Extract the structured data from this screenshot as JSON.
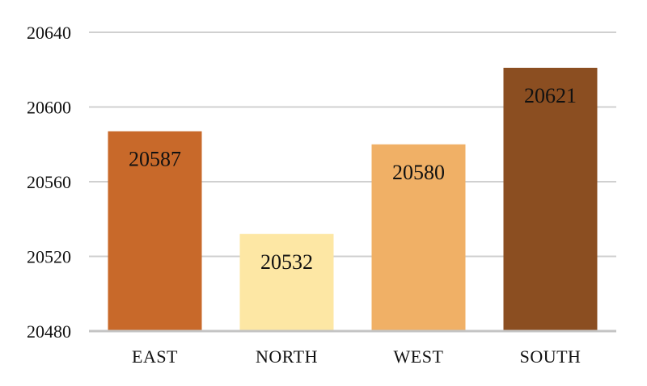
{
  "chart_data": {
    "type": "bar",
    "categories": [
      "EAST",
      "NORTH",
      "WEST",
      "SOUTH"
    ],
    "values": [
      20587,
      20532,
      20580,
      20621
    ],
    "data_labels": [
      "20587",
      "20532",
      "20580",
      "20621"
    ],
    "colors": [
      "#C8692A",
      "#FDE7A4",
      "#F0B066",
      "#8B4E21"
    ],
    "ylim": [
      20480,
      20640
    ],
    "yticks": [
      20480,
      20520,
      20560,
      20600,
      20640
    ],
    "ytick_labels": [
      "20480",
      "20520",
      "20560",
      "20600",
      "20640"
    ],
    "grid": true,
    "gridline_color": "#D0D0D0",
    "title": "",
    "xlabel": "",
    "ylabel": "",
    "legend": "none"
  }
}
